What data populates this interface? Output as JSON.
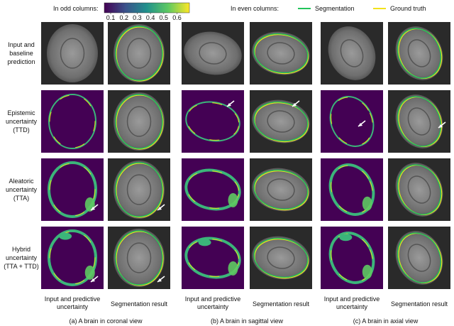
{
  "legend": {
    "odd_label": "In odd columns:",
    "colorbar_ticks": [
      0.1,
      0.2,
      0.3,
      0.4,
      0.5,
      0.6
    ],
    "even_label": "In even columns:",
    "items": [
      {
        "name": "Segmentation",
        "color": "#22c45a"
      },
      {
        "name": "Ground truth",
        "color": "#f2e21b"
      }
    ]
  },
  "rows": [
    [
      "Input and",
      "baseline",
      "prediction"
    ],
    [
      "Epistemic",
      "uncertainty",
      "(TTD)"
    ],
    [
      "Aleatoric",
      "uncertainty",
      "(TTA)"
    ],
    [
      "Hybrid",
      "uncertainty",
      "(TTA + TTD)"
    ]
  ],
  "column_labels": [
    [
      "Input and predictive",
      "uncertainty"
    ],
    [
      "Segmentation result"
    ],
    [
      "Input and predictive",
      "uncertainty"
    ],
    [
      "Segmentation result"
    ],
    [
      "Input and predictive",
      "uncertainty"
    ],
    [
      "Segmentation result"
    ]
  ],
  "captions": [
    "(a) A brain in coronal view",
    "(b) A brain in sagittal view",
    "(c) A brain in axial view"
  ]
}
